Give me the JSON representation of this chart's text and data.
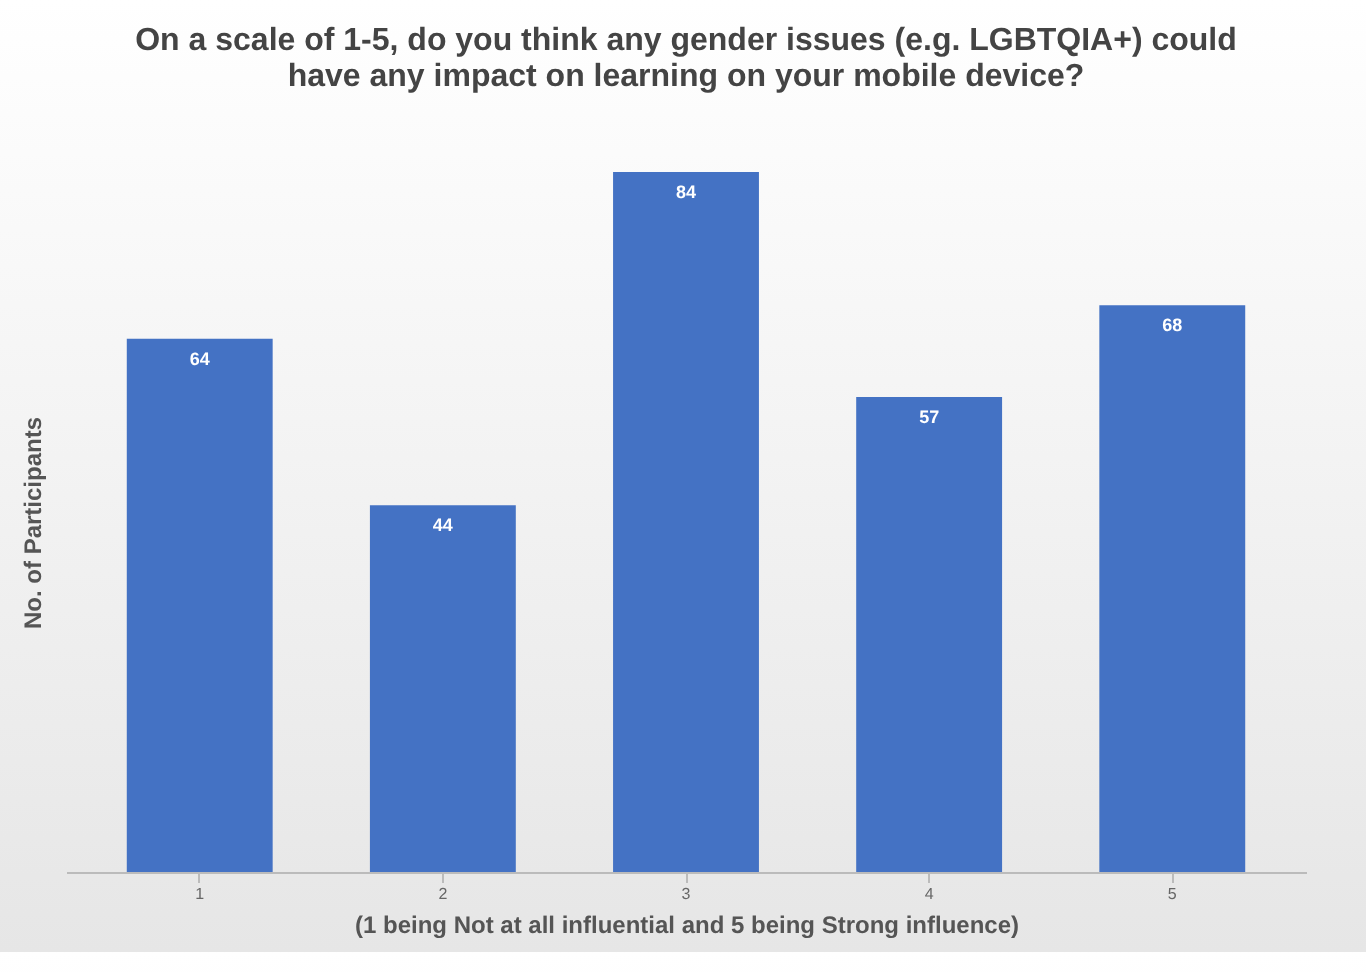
{
  "chart_data": {
    "type": "bar",
    "title": "On a scale of 1-5, do you think any gender issues (e.g. LGBTQIA+) could have any impact on learning on your mobile device?",
    "xlabel": "(1 being Not at all influential and 5 being Strong influence)",
    "ylabel": "No. of Participants",
    "categories": [
      "1",
      "2",
      "3",
      "4",
      "5"
    ],
    "values": [
      64,
      44,
      84,
      57,
      68
    ],
    "color": "#4472c4",
    "data_labels": true
  }
}
